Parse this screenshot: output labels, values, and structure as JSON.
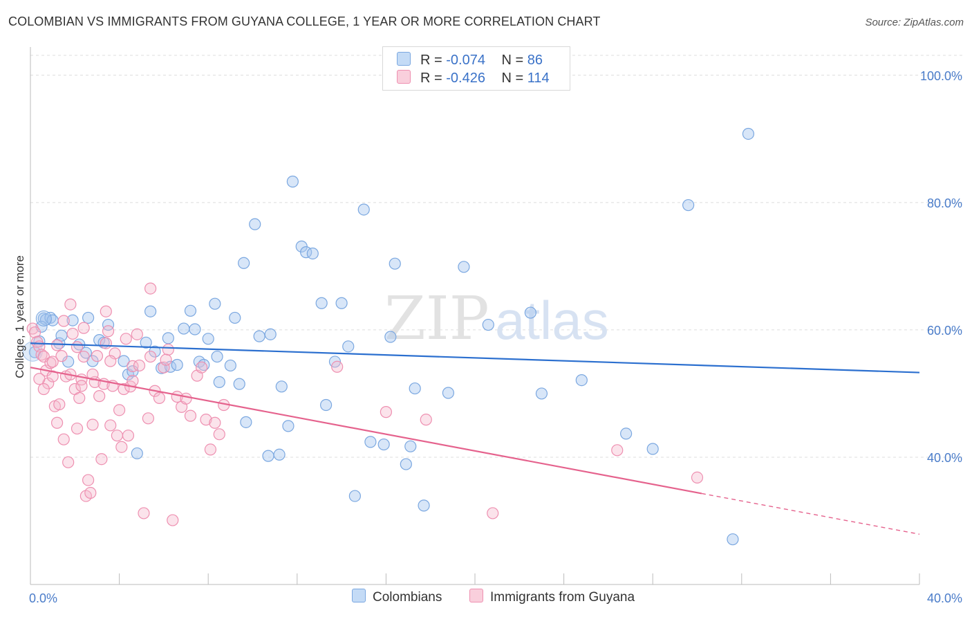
{
  "header": {
    "title": "COLOMBIAN VS IMMIGRANTS FROM GUYANA COLLEGE, 1 YEAR OR MORE CORRELATION CHART",
    "source": "Source: ZipAtlas.com"
  },
  "legend_top": {
    "rows": [
      {
        "r_label": "R =",
        "r_value": "-0.074",
        "n_label": "N =",
        "n_value": "86",
        "color": "#a9c8ef"
      },
      {
        "r_label": "R =",
        "r_value": "-0.426",
        "n_label": "N =",
        "n_value": "114",
        "color": "#f4b9cc"
      }
    ]
  },
  "legend_bottom": {
    "items": [
      {
        "label": "Colombians",
        "color": "#a9c8ef"
      },
      {
        "label": "Immigrants from Guyana",
        "color": "#f4b9cc"
      }
    ]
  },
  "watermark": {
    "zip": "ZIP",
    "atlas": "atlas"
  },
  "chart_data": {
    "type": "scatter",
    "title": "COLOMBIAN VS IMMIGRANTS FROM GUYANA COLLEGE, 1 YEAR OR MORE CORRELATION CHART",
    "xlabel": "",
    "ylabel": "College, 1 year or more",
    "xlim": [
      0,
      40
    ],
    "ylim": [
      20,
      104
    ],
    "x_tick_labels": [
      "0.0%",
      "40.0%"
    ],
    "y_ticks": [
      40,
      60,
      80,
      100
    ],
    "y_tick_labels": [
      "40.0%",
      "60.0%",
      "80.0%",
      "100.0%"
    ],
    "grid": true,
    "legend_position": "top-center",
    "series": [
      {
        "name": "Colombians",
        "color": "#7aa7e0",
        "fill": "rgba(169,200,239,0.45)",
        "line_color": "#2b6fcf",
        "r": -0.074,
        "n": 86,
        "trend": {
          "x": [
            0,
            40
          ],
          "y": [
            57.9,
            53.3
          ]
        },
        "points": [
          [
            0.2,
            56.5
          ],
          [
            0.4,
            58.2
          ],
          [
            0.6,
            61.8
          ],
          [
            0.7,
            61.6
          ],
          [
            0.9,
            61.9
          ],
          [
            1.0,
            61.5
          ],
          [
            1.3,
            57.9
          ],
          [
            1.4,
            59.1
          ],
          [
            1.7,
            55.0
          ],
          [
            1.9,
            61.5
          ],
          [
            2.2,
            57.7
          ],
          [
            2.5,
            56.4
          ],
          [
            2.6,
            61.9
          ],
          [
            2.8,
            55.1
          ],
          [
            3.1,
            58.4
          ],
          [
            3.3,
            58.0
          ],
          [
            3.5,
            60.8
          ],
          [
            4.2,
            55.1
          ],
          [
            4.4,
            53.0
          ],
          [
            4.6,
            53.5
          ],
          [
            4.8,
            40.6
          ],
          [
            5.2,
            58.0
          ],
          [
            5.4,
            62.9
          ],
          [
            5.6,
            56.6
          ],
          [
            5.9,
            54.0
          ],
          [
            6.2,
            58.7
          ],
          [
            6.3,
            54.2
          ],
          [
            6.6,
            54.5
          ],
          [
            6.9,
            60.2
          ],
          [
            7.2,
            63.0
          ],
          [
            7.4,
            60.1
          ],
          [
            7.6,
            55.0
          ],
          [
            7.8,
            54.5
          ],
          [
            8.0,
            58.6
          ],
          [
            8.3,
            64.1
          ],
          [
            8.4,
            55.8
          ],
          [
            8.5,
            51.8
          ],
          [
            9.0,
            54.4
          ],
          [
            9.2,
            61.9
          ],
          [
            9.4,
            51.5
          ],
          [
            9.6,
            70.5
          ],
          [
            9.7,
            45.5
          ],
          [
            10.1,
            76.6
          ],
          [
            10.3,
            59.0
          ],
          [
            10.7,
            40.2
          ],
          [
            10.8,
            59.3
          ],
          [
            11.2,
            40.4
          ],
          [
            11.3,
            51.1
          ],
          [
            11.6,
            44.9
          ],
          [
            11.8,
            83.3
          ],
          [
            12.2,
            73.1
          ],
          [
            12.4,
            72.2
          ],
          [
            12.7,
            72.0
          ],
          [
            13.1,
            64.2
          ],
          [
            13.3,
            48.2
          ],
          [
            13.7,
            55.0
          ],
          [
            14.0,
            64.2
          ],
          [
            14.3,
            57.4
          ],
          [
            14.6,
            33.9
          ],
          [
            15.0,
            78.9
          ],
          [
            15.3,
            42.4
          ],
          [
            15.9,
            42.0
          ],
          [
            16.2,
            58.9
          ],
          [
            16.4,
            70.4
          ],
          [
            16.9,
            38.9
          ],
          [
            17.1,
            41.7
          ],
          [
            17.3,
            50.8
          ],
          [
            17.7,
            32.4
          ],
          [
            18.8,
            50.1
          ],
          [
            19.5,
            69.9
          ],
          [
            20.6,
            60.8
          ],
          [
            22.5,
            62.7
          ],
          [
            23.0,
            50.0
          ],
          [
            24.8,
            52.1
          ],
          [
            26.8,
            43.7
          ],
          [
            28.0,
            41.3
          ],
          [
            29.6,
            79.6
          ],
          [
            31.6,
            27.1
          ],
          [
            32.3,
            90.8
          ],
          [
            0.5,
            60.5
          ]
        ]
      },
      {
        "name": "Immigrants from Guyana",
        "color": "#ee8fb0",
        "fill": "rgba(244,185,204,0.40)",
        "line_color": "#e5628d",
        "r": -0.426,
        "n": 114,
        "trend": {
          "x": [
            0,
            30.2
          ],
          "y": [
            54.1,
            34.3
          ]
        },
        "trend_dashed": {
          "x": [
            30.2,
            40
          ],
          "y": [
            34.3,
            27.9
          ]
        },
        "points": [
          [
            0.1,
            60.2
          ],
          [
            0.2,
            59.6
          ],
          [
            0.3,
            58.1
          ],
          [
            0.4,
            57.4
          ],
          [
            0.5,
            56.1
          ],
          [
            0.6,
            55.8
          ],
          [
            0.7,
            53.6
          ],
          [
            0.8,
            51.6
          ],
          [
            0.9,
            54.8
          ],
          [
            1.0,
            52.7
          ],
          [
            1.1,
            48.0
          ],
          [
            1.2,
            45.4
          ],
          [
            1.3,
            48.3
          ],
          [
            1.4,
            55.9
          ],
          [
            1.5,
            42.8
          ],
          [
            1.6,
            52.7
          ],
          [
            1.7,
            39.2
          ],
          [
            1.8,
            53.0
          ],
          [
            1.9,
            59.4
          ],
          [
            2.0,
            50.7
          ],
          [
            2.1,
            44.5
          ],
          [
            2.2,
            49.3
          ],
          [
            2.3,
            52.2
          ],
          [
            2.4,
            55.8
          ],
          [
            2.5,
            33.9
          ],
          [
            2.6,
            36.4
          ],
          [
            2.7,
            34.4
          ],
          [
            2.8,
            45.1
          ],
          [
            2.9,
            51.8
          ],
          [
            3.0,
            55.9
          ],
          [
            3.1,
            49.6
          ],
          [
            3.2,
            39.7
          ],
          [
            3.3,
            51.5
          ],
          [
            3.4,
            62.9
          ],
          [
            3.5,
            59.8
          ],
          [
            3.6,
            45.0
          ],
          [
            3.7,
            51.2
          ],
          [
            3.8,
            56.3
          ],
          [
            3.9,
            43.4
          ],
          [
            4.0,
            47.4
          ],
          [
            4.1,
            41.6
          ],
          [
            4.2,
            50.7
          ],
          [
            4.3,
            58.6
          ],
          [
            4.4,
            43.4
          ],
          [
            4.5,
            51.1
          ],
          [
            4.6,
            54.3
          ],
          [
            4.8,
            59.3
          ],
          [
            4.9,
            54.4
          ],
          [
            5.1,
            31.2
          ],
          [
            5.3,
            46.1
          ],
          [
            5.4,
            55.8
          ],
          [
            5.6,
            50.4
          ],
          [
            5.8,
            49.3
          ],
          [
            6.0,
            54.1
          ],
          [
            6.2,
            56.9
          ],
          [
            6.4,
            30.1
          ],
          [
            6.6,
            49.5
          ],
          [
            6.8,
            47.9
          ],
          [
            7.0,
            49.2
          ],
          [
            7.2,
            46.5
          ],
          [
            7.5,
            52.8
          ],
          [
            7.7,
            54.1
          ],
          [
            7.9,
            45.9
          ],
          [
            8.1,
            41.2
          ],
          [
            8.3,
            45.4
          ],
          [
            8.5,
            43.6
          ],
          [
            8.7,
            48.2
          ],
          [
            5.4,
            66.5
          ],
          [
            3.4,
            57.9
          ],
          [
            2.4,
            60.3
          ],
          [
            1.5,
            61.4
          ],
          [
            1.8,
            64.0
          ],
          [
            0.4,
            52.3
          ],
          [
            0.6,
            50.7
          ],
          [
            1.2,
            57.6
          ],
          [
            2.1,
            57.3
          ],
          [
            2.8,
            53.0
          ],
          [
            3.6,
            55.1
          ],
          [
            4.6,
            52.0
          ],
          [
            6.1,
            55.3
          ],
          [
            13.8,
            54.2
          ],
          [
            16.0,
            47.1
          ],
          [
            17.8,
            45.9
          ],
          [
            20.8,
            31.2
          ],
          [
            26.4,
            41.1
          ],
          [
            30.0,
            36.8
          ],
          [
            1.0,
            55.0
          ],
          [
            2.3,
            51.2
          ]
        ]
      }
    ]
  }
}
